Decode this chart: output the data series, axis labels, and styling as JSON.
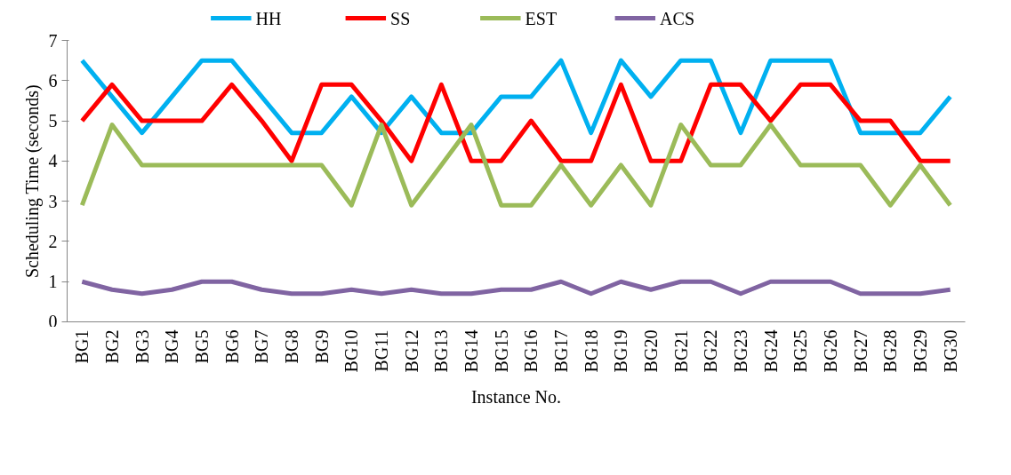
{
  "chart_data": {
    "type": "line",
    "xlabel": "Instance No.",
    "ylabel": "Scheduling Time (seconds)",
    "categories": [
      "BG1",
      "BG2",
      "BG3",
      "BG4",
      "BG5",
      "BG6",
      "BG7",
      "BG8",
      "BG9",
      "BG10",
      "BG11",
      "BG12",
      "BG13",
      "BG14",
      "BG15",
      "BG16",
      "BG17",
      "BG18",
      "BG19",
      "BG20",
      "BG21",
      "BG22",
      "BG23",
      "BG24",
      "BG25",
      "BG26",
      "BG27",
      "BG28",
      "BG29",
      "BG30"
    ],
    "series": [
      {
        "name": "HH",
        "color": "#00b0f0",
        "values": [
          6.5,
          5.6,
          4.7,
          5.6,
          6.5,
          6.5,
          5.6,
          4.7,
          4.7,
          5.6,
          4.7,
          5.6,
          4.7,
          4.7,
          5.6,
          5.6,
          6.5,
          4.7,
          6.5,
          5.6,
          6.5,
          6.5,
          4.7,
          6.5,
          6.5,
          6.5,
          4.7,
          4.7,
          4.7,
          5.6
        ]
      },
      {
        "name": "SS",
        "color": "#ff0000",
        "values": [
          5.0,
          5.9,
          5.0,
          5.0,
          5.0,
          5.9,
          5.0,
          4.0,
          5.9,
          5.9,
          5.0,
          4.0,
          5.9,
          4.0,
          4.0,
          5.0,
          4.0,
          4.0,
          5.9,
          4.0,
          4.0,
          5.9,
          5.9,
          5.0,
          5.9,
          5.9,
          5.0,
          5.0,
          4.0,
          4.0
        ]
      },
      {
        "name": "EST",
        "color": "#9bbb59",
        "values": [
          2.9,
          4.9,
          3.9,
          3.9,
          3.9,
          3.9,
          3.9,
          3.9,
          3.9,
          2.9,
          4.9,
          2.9,
          3.9,
          4.9,
          2.9,
          2.9,
          3.9,
          2.9,
          3.9,
          2.9,
          4.9,
          3.9,
          3.9,
          4.9,
          3.9,
          3.9,
          3.9,
          2.9,
          3.9,
          2.9
        ]
      },
      {
        "name": "ACS",
        "color": "#8064a2",
        "values": [
          1.0,
          0.8,
          0.7,
          0.8,
          1.0,
          1.0,
          0.8,
          0.7,
          0.7,
          0.8,
          0.7,
          0.8,
          0.7,
          0.7,
          0.8,
          0.8,
          1.0,
          0.7,
          1.0,
          0.8,
          1.0,
          1.0,
          0.7,
          1.0,
          1.0,
          1.0,
          0.7,
          0.7,
          0.7,
          0.8
        ]
      }
    ],
    "ylim": [
      0,
      7
    ],
    "yticks": [
      0,
      1,
      2,
      3,
      4,
      5,
      6,
      7
    ],
    "grid": false,
    "legend": "top",
    "marker": "none",
    "line_style": "solid"
  }
}
